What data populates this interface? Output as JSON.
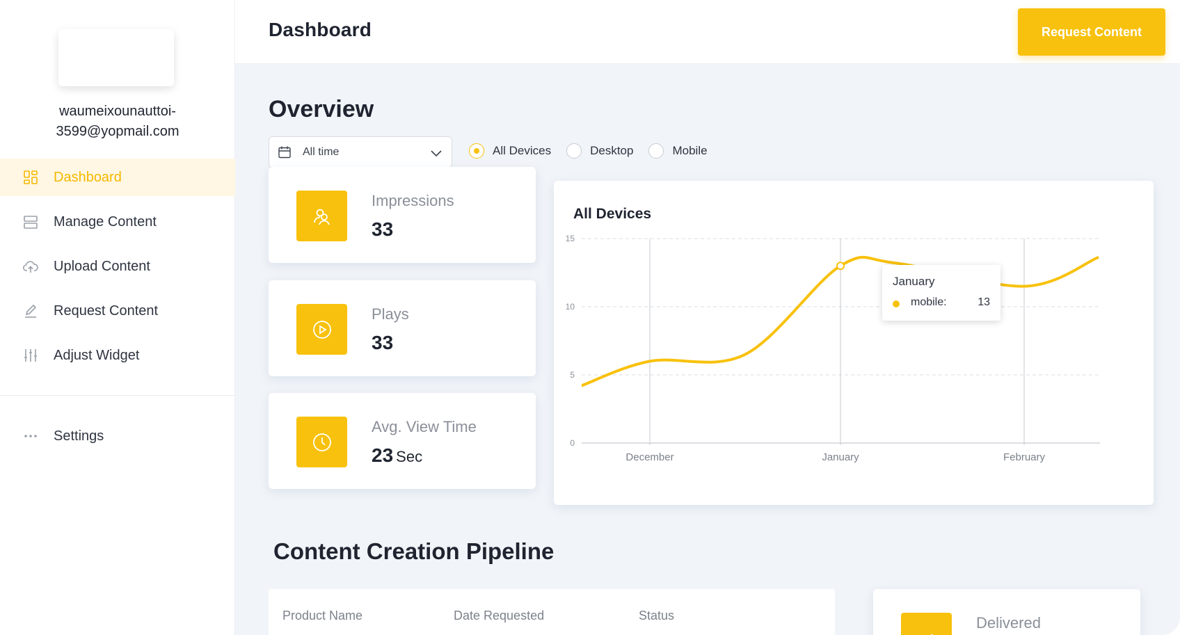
{
  "sidebar": {
    "user_email": "waumeixounauttoi-3599@yopmail.com",
    "items": [
      {
        "label": "Dashboard",
        "icon": "grid-icon",
        "active": true
      },
      {
        "label": "Manage Content",
        "icon": "layers-icon",
        "active": false
      },
      {
        "label": "Upload Content",
        "icon": "cloud-upload-icon",
        "active": false
      },
      {
        "label": "Request Content",
        "icon": "pencil-icon",
        "active": false
      },
      {
        "label": "Adjust Widget",
        "icon": "sliders-icon",
        "active": false
      }
    ],
    "settings": {
      "label": "Settings",
      "icon": "more-dots-icon"
    }
  },
  "header": {
    "title": "Dashboard",
    "request_button": "Request Content"
  },
  "overview": {
    "title": "Overview",
    "date_filter": "All time",
    "device_options": [
      {
        "label": "All Devices",
        "checked": true
      },
      {
        "label": "Desktop",
        "checked": false
      },
      {
        "label": "Mobile",
        "checked": false
      }
    ],
    "stats": [
      {
        "label": "Impressions",
        "value": "33",
        "unit": "",
        "icon": "users-icon"
      },
      {
        "label": "Plays",
        "value": "33",
        "unit": "",
        "icon": "play-icon"
      },
      {
        "label": "Avg. View Time",
        "value": "23",
        "unit": "Sec",
        "icon": "clock-icon"
      }
    ]
  },
  "chart": {
    "title": "All Devices",
    "tooltip": {
      "title": "January",
      "series": "mobile:",
      "value": "13"
    }
  },
  "chart_data": {
    "type": "line",
    "title": "All Devices",
    "categories": [
      "December",
      "January",
      "February"
    ],
    "x_ticks": [
      "December",
      "January",
      "February"
    ],
    "y_ticks": [
      "0",
      "5",
      "10",
      "15"
    ],
    "ylim": [
      0,
      15
    ],
    "series": [
      {
        "name": "mobile",
        "x": [
          -0.36,
          0,
          0.5,
          1,
          1.3,
          2,
          2.4
        ],
        "values": [
          4.2,
          6,
          6.5,
          13,
          13.2,
          11.5,
          13.6
        ]
      }
    ],
    "colors": {
      "line": "#f8c10d",
      "grid": "#d9dde3",
      "axis": "#c5c9cf"
    },
    "grid": true
  },
  "pipeline": {
    "title": "Content Creation Pipeline",
    "columns": [
      "Product Name",
      "Date Requested",
      "Status"
    ],
    "delivered_label": "Delivered"
  },
  "colors": {
    "accent": "#f8c10d",
    "active_bg": "#fff7e3",
    "main_bg": "#f1f4f8"
  }
}
